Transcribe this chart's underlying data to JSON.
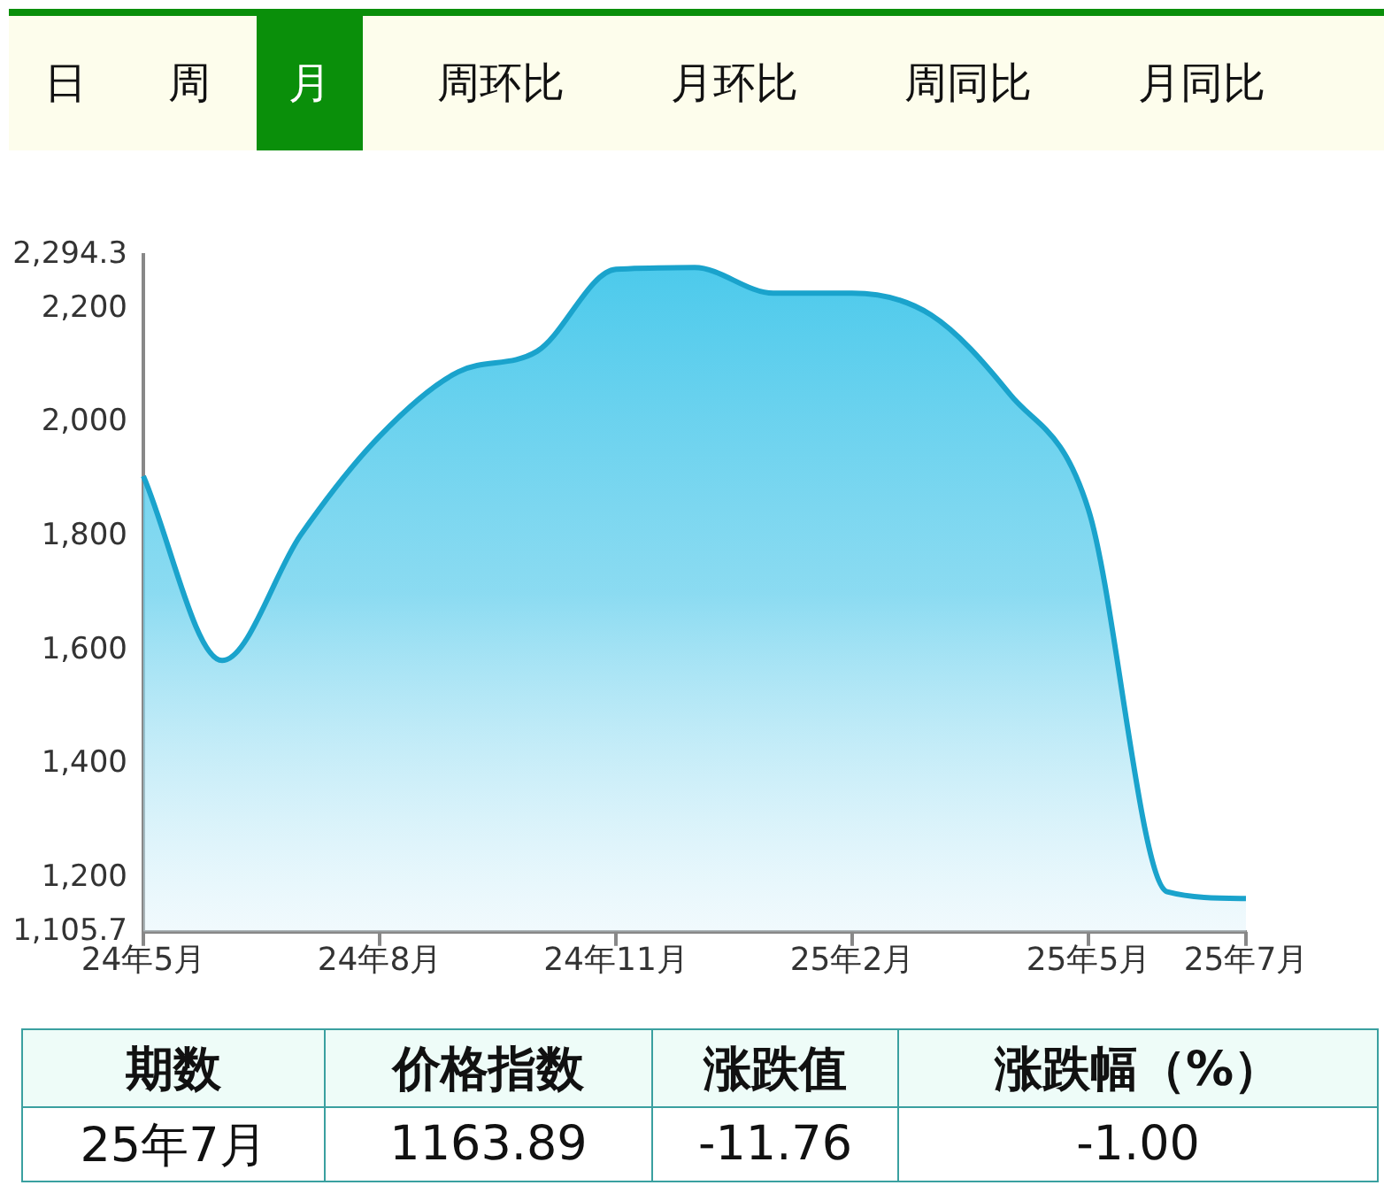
{
  "chart_data": [
    {
      "type": "other",
      "annotations": [
        "日",
        "周",
        "月",
        "周环比",
        "月环比",
        "周同比",
        "月同比"
      ]
    },
    {
      "type": "area",
      "categories": [
        "24年5月",
        null,
        null,
        "24年8月",
        null,
        null,
        "24年11月",
        null,
        null,
        "25年2月",
        null,
        null,
        "25年5月",
        null,
        "25年7月"
      ],
      "series": [
        {
          "color": "#1aa3cc",
          "values": [
            1906,
            1582,
            1803,
            1976,
            2089,
            2125,
            2269,
            2272,
            2227,
            2227,
            2189,
            2050,
            1847,
            1176,
            1164
          ]
        }
      ],
      "ylim": [
        1105.7,
        2294.3
      ],
      "yticks": [
        {
          "value": 1105.7,
          "label": "1,105.7"
        },
        {
          "value": 1200,
          "label": "1,200"
        },
        {
          "value": 1400,
          "label": "1,400"
        },
        {
          "value": 1600,
          "label": "1,600"
        },
        {
          "value": 1800,
          "label": "1,800"
        },
        {
          "value": 2000,
          "label": "2,000"
        },
        {
          "value": 2200,
          "label": "2,200"
        },
        {
          "value": 2294.3,
          "label": "2,294.3"
        }
      ],
      "marker": "none",
      "grid": false,
      "legend": false
    },
    {
      "type": "other",
      "annotations": [
        "期数",
        "价格指数",
        "涨跌值",
        "涨跌幅（%）",
        "25年7月",
        "1163.89",
        "-11.76",
        "-1.00"
      ]
    }
  ]
}
